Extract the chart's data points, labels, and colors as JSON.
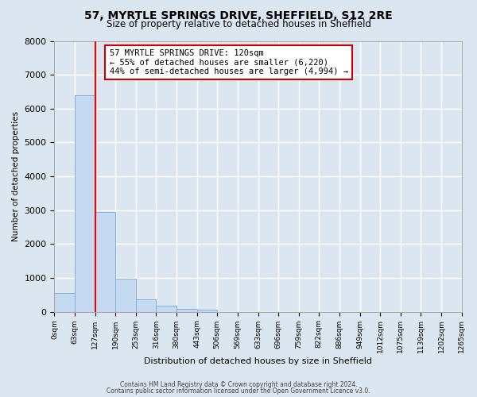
{
  "title": "57, MYRTLE SPRINGS DRIVE, SHEFFIELD, S12 2RE",
  "subtitle": "Size of property relative to detached houses in Sheffield",
  "xlabel": "Distribution of detached houses by size in Sheffield",
  "ylabel": "Number of detached properties",
  "bar_color": "#c5d9f0",
  "bar_edge_color": "#7eb0d9",
  "background_color": "#dce6f1",
  "grid_color": "white",
  "bin_edges": [
    0,
    63,
    127,
    190,
    253,
    316,
    380,
    443,
    506,
    569,
    633,
    696,
    759,
    822,
    886,
    949,
    1012,
    1075,
    1139,
    1202,
    1265
  ],
  "bin_labels": [
    "0sqm",
    "63sqm",
    "127sqm",
    "190sqm",
    "253sqm",
    "316sqm",
    "380sqm",
    "443sqm",
    "506sqm",
    "569sqm",
    "633sqm",
    "696sqm",
    "759sqm",
    "822sqm",
    "886sqm",
    "949sqm",
    "1012sqm",
    "1075sqm",
    "1139sqm",
    "1202sqm",
    "1265sqm"
  ],
  "bar_heights": [
    560,
    6400,
    2950,
    980,
    370,
    170,
    80,
    50,
    0,
    0,
    0,
    0,
    0,
    0,
    0,
    0,
    0,
    0,
    0,
    0
  ],
  "red_line_x": 127,
  "annotation_text": "57 MYRTLE SPRINGS DRIVE: 120sqm\n← 55% of detached houses are smaller (6,220)\n44% of semi-detached houses are larger (4,994) →",
  "annotation_box_color": "white",
  "annotation_box_edge_color": "#cc0000",
  "ylim": [
    0,
    8000
  ],
  "yticks": [
    0,
    1000,
    2000,
    3000,
    4000,
    5000,
    6000,
    7000,
    8000
  ],
  "footer_line1": "Contains HM Land Registry data © Crown copyright and database right 2024.",
  "footer_line2": "Contains public sector information licensed under the Open Government Licence v3.0."
}
